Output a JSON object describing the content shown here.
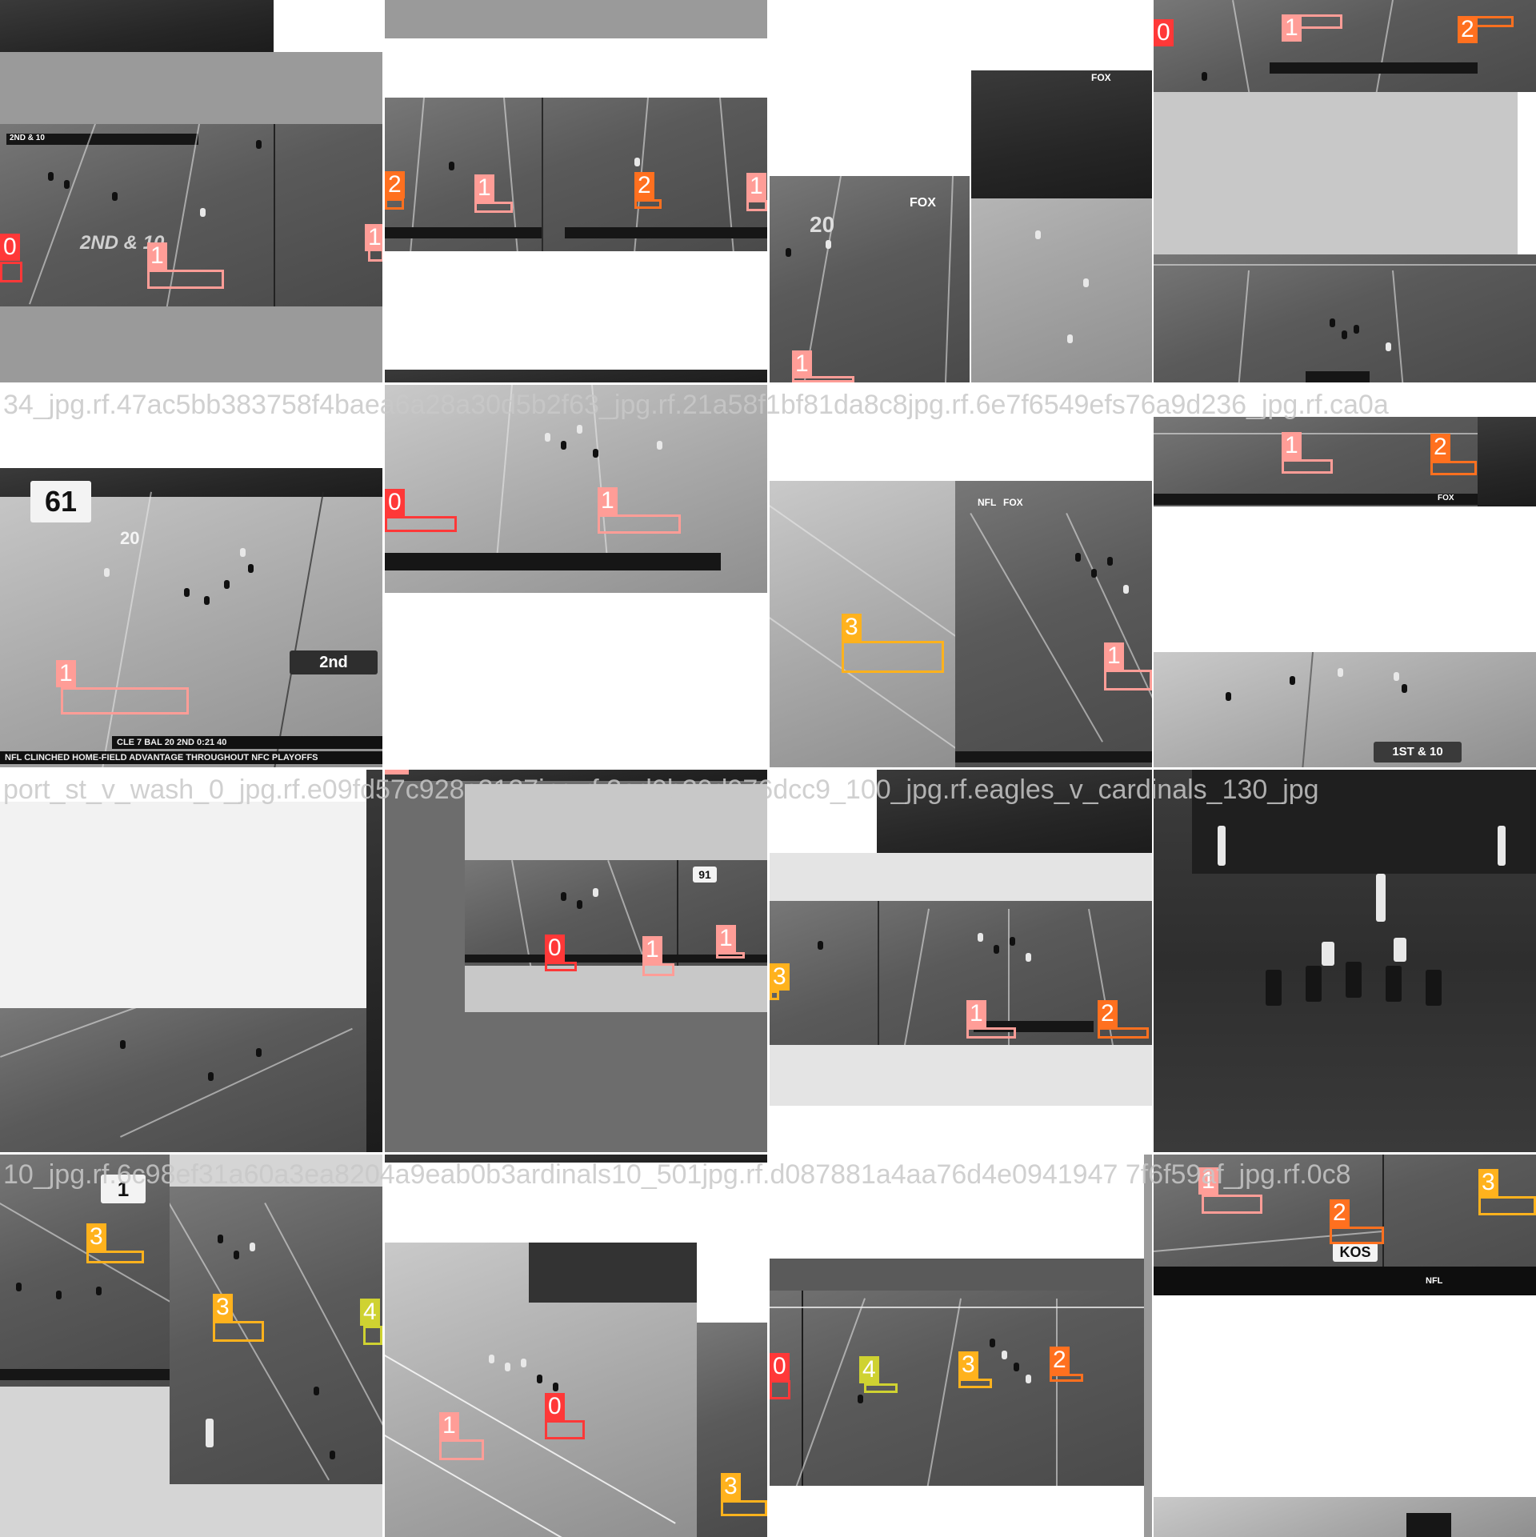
{
  "mosaic": {
    "filename_labels": [
      {
        "tile": 4,
        "text": "34_jpg.rf.47ac5bb383758f4baea6a28a30d5b2f63_jpg.rf.21a58f1bf81da8c8jpg.rf.6e7f6549efs76a9d236_jpg.rf.ca0a"
      },
      {
        "tile": 8,
        "text": "port_st_v_wash_0_jpg.rf.e09fd57c928c2127jpg.rf.3ad0b30d976dcc9_100_jpg.rf.eagles_v_cardinals_130_jpg"
      },
      {
        "tile": 12,
        "text": "10_jpg.rf.6c98ef31a60a3ea8204a9eab0b3ardinals10_501jpg.rf.d087881a4aa76d4e0941947 7f6f59af_jpg.rf.0c8"
      }
    ],
    "classes": {
      "0": {
        "label": "0",
        "color": "#ff3838"
      },
      "1": {
        "label": "1",
        "color": "#ff9d97"
      },
      "2": {
        "label": "2",
        "color": "#ff701f"
      },
      "3": {
        "label": "3",
        "color": "#ffb21d"
      },
      "4": {
        "label": "4",
        "color": "#cfd231"
      }
    },
    "scoreboard_text": {
      "t0_down": "2ND & 10",
      "t0_big": "2ND & 10",
      "t4_jersey": "61",
      "t4_down": "2nd",
      "t4_ticker": "CLE 7 BAL 20 2ND 0:21 40",
      "t4_banner": "NFL CLINCHED HOME-FIELD ADVANTAGE THROUGHOUT NFC PLAYOFFS",
      "t7_down": "1ST & 10",
      "t9_jersey": "91",
      "t12_jersey": "1",
      "t15_network": "KOS",
      "t15_nfl": "NFL",
      "t2_network": "FOX",
      "t6_network": "FOX"
    }
  }
}
